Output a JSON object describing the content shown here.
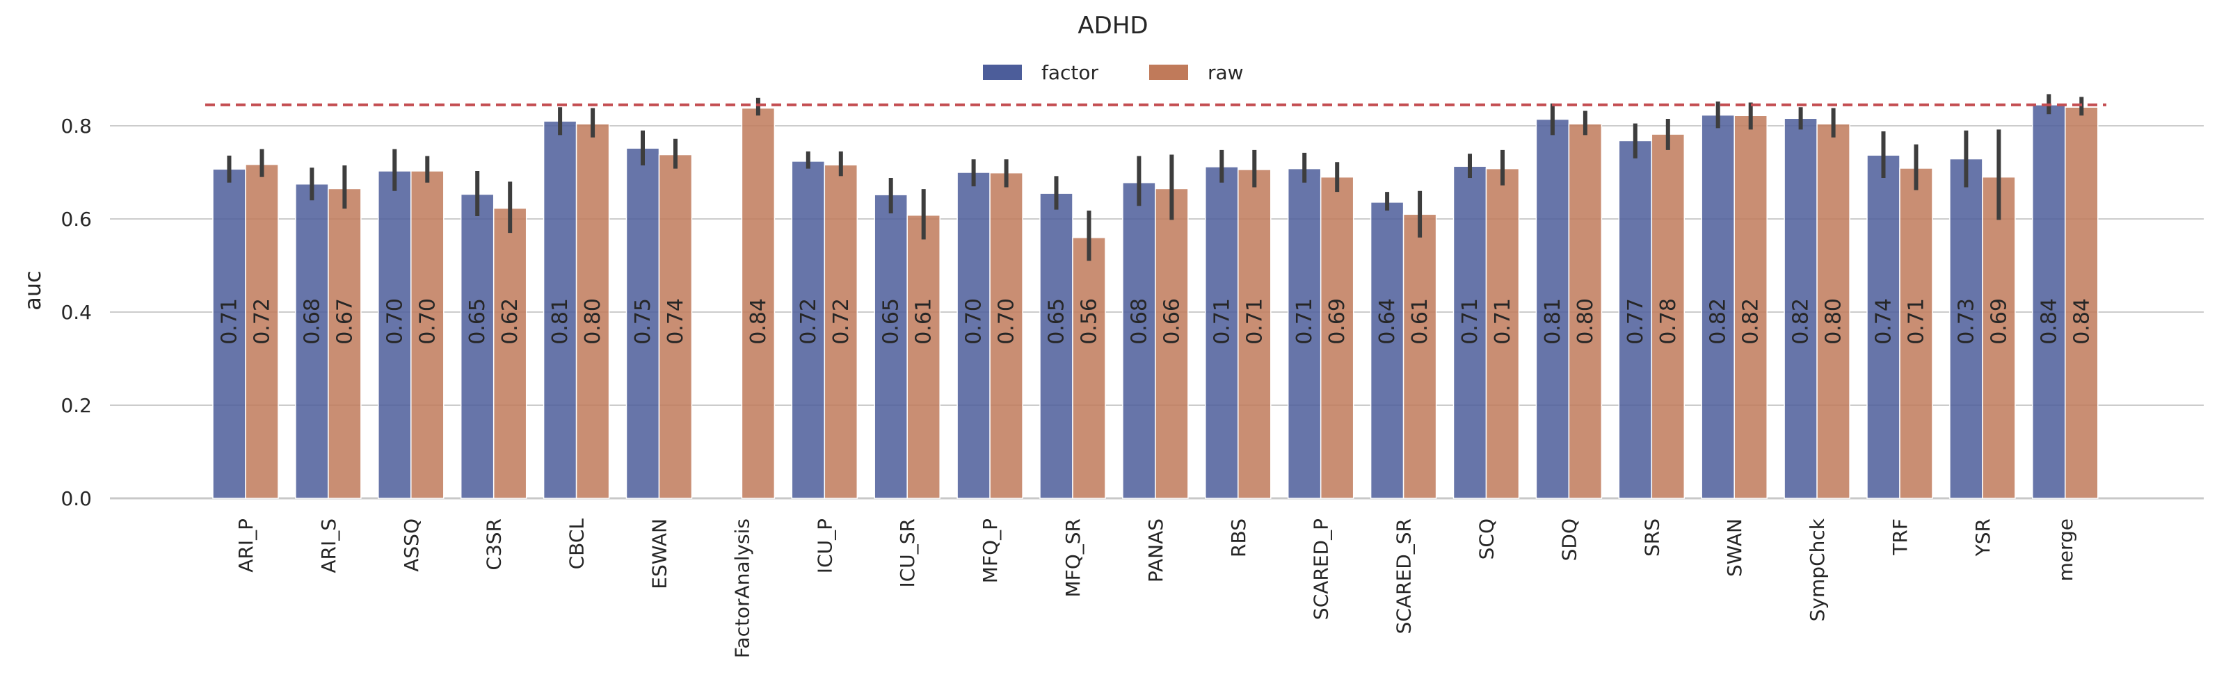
{
  "chart_data": {
    "type": "bar",
    "title": "ADHD",
    "xlabel": "",
    "ylabel": "auc",
    "ylim": [
      0,
      0.9
    ],
    "yticks": [
      0.0,
      0.2,
      0.4,
      0.6,
      0.8
    ],
    "ytick_labels": [
      "0.0",
      "0.2",
      "0.4",
      "0.6",
      "0.8"
    ],
    "grid": "horizontal",
    "legend": "top-center",
    "reference_line": 0.845,
    "reference_line_color": "#c44e52",
    "categories": [
      "ARI_P",
      "ARI_S",
      "ASSQ",
      "C3SR",
      "CBCL",
      "ESWAN",
      "FactorAnalysis",
      "ICU_P",
      "ICU_SR",
      "MFQ_P",
      "MFQ_SR",
      "PANAS",
      "RBS",
      "SCARED_P",
      "SCARED_SR",
      "SCQ",
      "SDQ",
      "SRS",
      "SWAN",
      "SympChck",
      "TRF",
      "YSR",
      "merge"
    ],
    "series": [
      {
        "name": "factor",
        "color": "#4c5d9a",
        "values": [
          0.707,
          0.675,
          0.703,
          0.653,
          0.81,
          0.752,
          null,
          0.724,
          0.652,
          0.7,
          0.655,
          0.678,
          0.712,
          0.708,
          0.636,
          0.713,
          0.814,
          0.768,
          0.823,
          0.816,
          0.737,
          0.729,
          0.845
        ],
        "labels": [
          "0.71",
          "0.68",
          "0.70",
          "0.65",
          "0.81",
          "0.75",
          "",
          "0.72",
          "0.65",
          "0.70",
          "0.65",
          "0.68",
          "0.71",
          "0.71",
          "0.64",
          "0.71",
          "0.81",
          "0.77",
          "0.82",
          "0.82",
          "0.74",
          "0.73",
          "0.84"
        ],
        "err_low": [
          0.678,
          0.64,
          0.66,
          0.606,
          0.78,
          0.715,
          null,
          0.708,
          0.612,
          0.67,
          0.62,
          0.628,
          0.678,
          0.678,
          0.618,
          0.688,
          0.78,
          0.73,
          0.795,
          0.792,
          0.688,
          0.668,
          0.825
        ],
        "err_high": [
          0.736,
          0.71,
          0.75,
          0.703,
          0.84,
          0.79,
          null,
          0.745,
          0.688,
          0.728,
          0.692,
          0.735,
          0.748,
          0.742,
          0.658,
          0.74,
          0.848,
          0.805,
          0.852,
          0.84,
          0.788,
          0.79,
          0.868
        ]
      },
      {
        "name": "raw",
        "color": "#c07a5a",
        "values": [
          0.717,
          0.665,
          0.703,
          0.623,
          0.804,
          0.738,
          0.838,
          0.716,
          0.608,
          0.699,
          0.56,
          0.665,
          0.706,
          0.69,
          0.61,
          0.708,
          0.804,
          0.782,
          0.822,
          0.804,
          0.709,
          0.69,
          0.84
        ],
        "labels": [
          "0.72",
          "0.67",
          "0.70",
          "0.62",
          "0.80",
          "0.74",
          "0.84",
          "0.72",
          "0.61",
          "0.70",
          "0.56",
          "0.66",
          "0.71",
          "0.69",
          "0.61",
          "0.71",
          "0.80",
          "0.78",
          "0.82",
          "0.80",
          "0.71",
          "0.69",
          "0.84"
        ],
        "err_low": [
          0.69,
          0.622,
          0.678,
          0.57,
          0.775,
          0.708,
          0.822,
          0.692,
          0.556,
          0.668,
          0.51,
          0.598,
          0.668,
          0.658,
          0.56,
          0.672,
          0.78,
          0.748,
          0.792,
          0.775,
          0.662,
          0.598,
          0.822
        ],
        "err_high": [
          0.75,
          0.715,
          0.735,
          0.68,
          0.838,
          0.772,
          0.86,
          0.745,
          0.664,
          0.728,
          0.618,
          0.738,
          0.748,
          0.722,
          0.66,
          0.748,
          0.832,
          0.815,
          0.85,
          0.838,
          0.76,
          0.792,
          0.862
        ]
      }
    ]
  }
}
